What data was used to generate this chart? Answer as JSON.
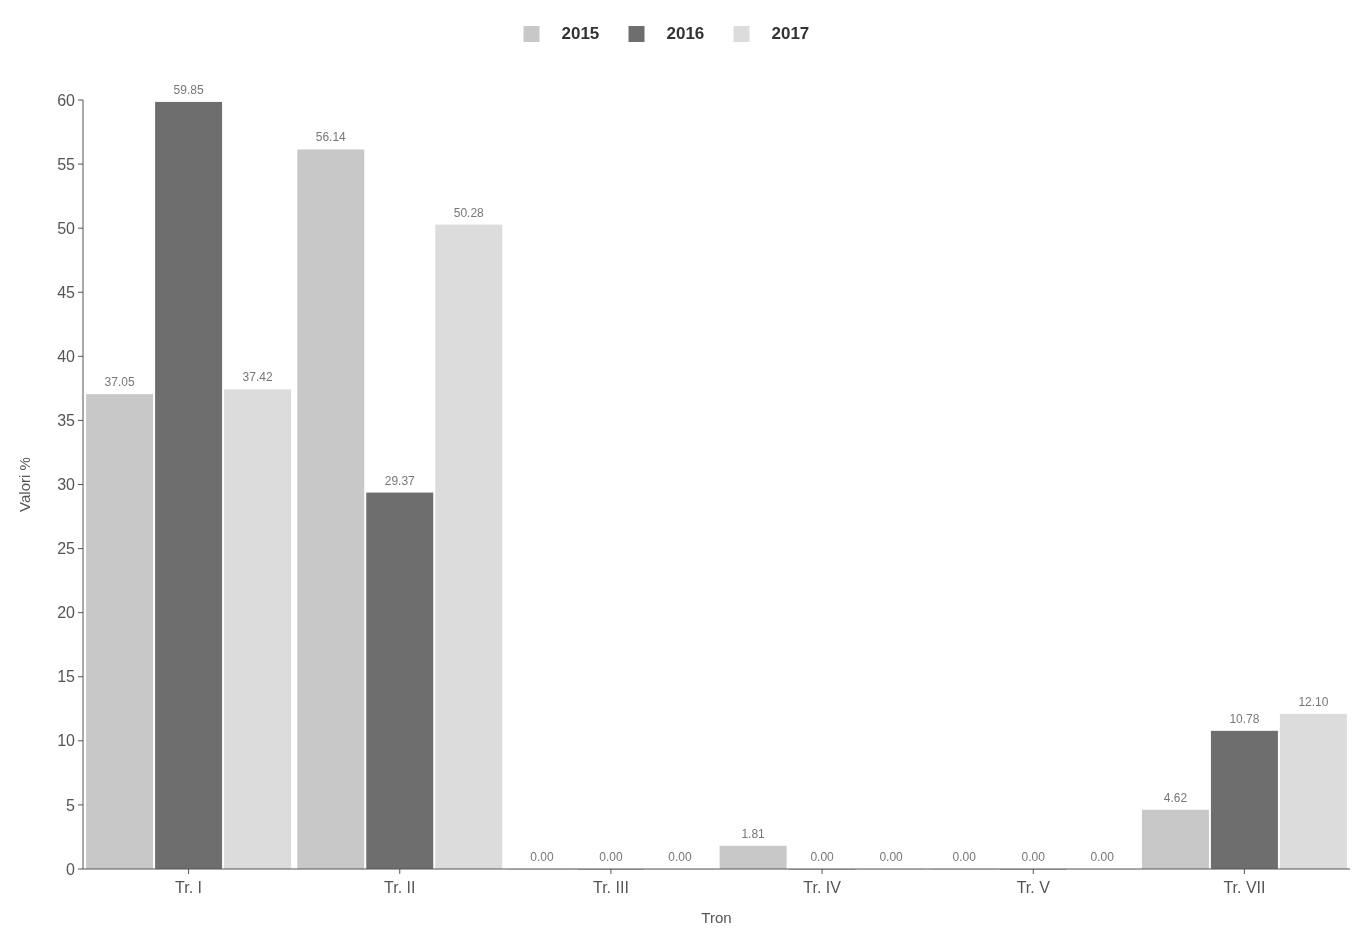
{
  "chart_data": {
    "type": "bar",
    "xlabel": "Tron",
    "ylabel": "Valori %",
    "categories": [
      "Tr. I",
      "Tr. II",
      "Tr. III",
      "Tr. IV",
      "Tr. V",
      "Tr. VII"
    ],
    "series": [
      {
        "name": "2015",
        "color": "#c8c8c8",
        "values": [
          37.05,
          56.14,
          0,
          1.81,
          0,
          4.62
        ],
        "value_labels": [
          "37.05",
          "56.14",
          "0.00",
          "1.81",
          "0.00",
          "4.62"
        ]
      },
      {
        "name": "2016",
        "color": "#6e6e6e",
        "values": [
          59.85,
          29.37,
          0,
          0,
          0,
          10.78
        ],
        "value_labels": [
          "59.85",
          "29.37",
          "0.00",
          "0.00",
          "0.00",
          "10.78"
        ]
      },
      {
        "name": "2017",
        "color": "#dcdcdc",
        "values": [
          37.42,
          50.28,
          0,
          0,
          0,
          12.1
        ],
        "value_labels": [
          "37.42",
          "50.28",
          "0.00",
          "0.00",
          "0.00",
          "12.10"
        ]
      }
    ],
    "ylim": [
      0,
      60
    ],
    "yticks": [
      0,
      5,
      10,
      15,
      20,
      25,
      30,
      35,
      40,
      45,
      50,
      55,
      60
    ],
    "grid": false,
    "legend": "top"
  }
}
